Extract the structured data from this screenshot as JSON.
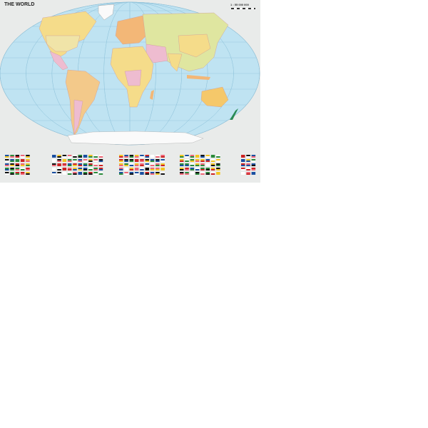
{
  "map": {
    "title": "THE WORLD",
    "scale": "1 : 55 000 000",
    "colors": {
      "ocean": "#bfe3f2",
      "land_yellow": "#f5dc8a",
      "land_green": "#dfe6a0",
      "land_pink": "#eebcd0",
      "land_orange": "#f3b777",
      "antarctica": "#fafafa",
      "background": "#e9ebea"
    },
    "flag_groups": 5
  }
}
